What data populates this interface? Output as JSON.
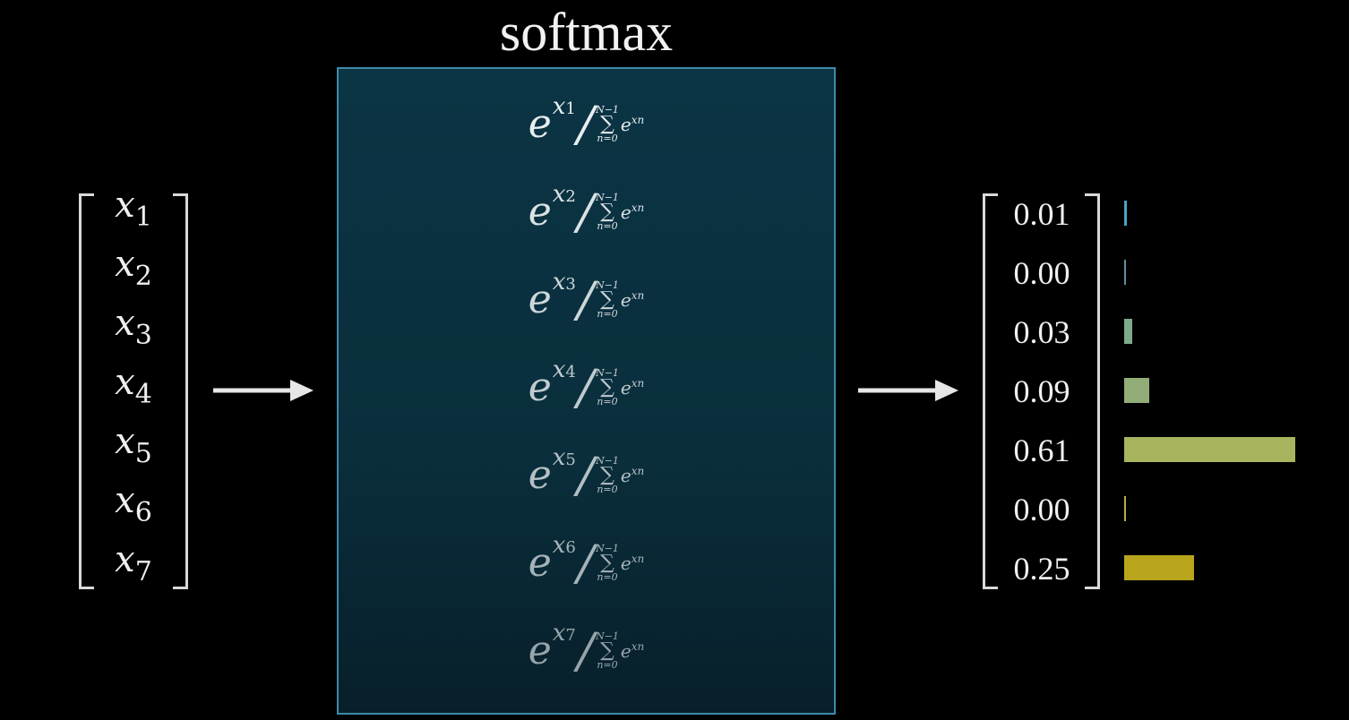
{
  "title": "softmax",
  "inputs": [
    "x",
    "x",
    "x",
    "x",
    "x",
    "x",
    "x"
  ],
  "input_subscripts": [
    "1",
    "2",
    "3",
    "4",
    "5",
    "6",
    "7"
  ],
  "formula": {
    "base": "e",
    "exp_var": "x",
    "slash": "/",
    "sum_upper": "N−1",
    "sum_symbol": "∑",
    "sum_lower": "n=0",
    "sum_term_base": "e",
    "sum_term_exp": "x",
    "sum_term_sub": "n"
  },
  "outputs": [
    "0.01",
    "0.00",
    "0.03",
    "0.09",
    "0.61",
    "0.00",
    "0.25"
  ],
  "bar_colors": [
    "#4aa3c9",
    "#5f8f9e",
    "#7ea98a",
    "#93ad78",
    "#a8b55e",
    "#b6b040",
    "#b8a51c"
  ],
  "colors": {
    "background": "#000000",
    "panel_border": "#3f8aa8",
    "panel_fill": "#0a2e3c"
  }
}
